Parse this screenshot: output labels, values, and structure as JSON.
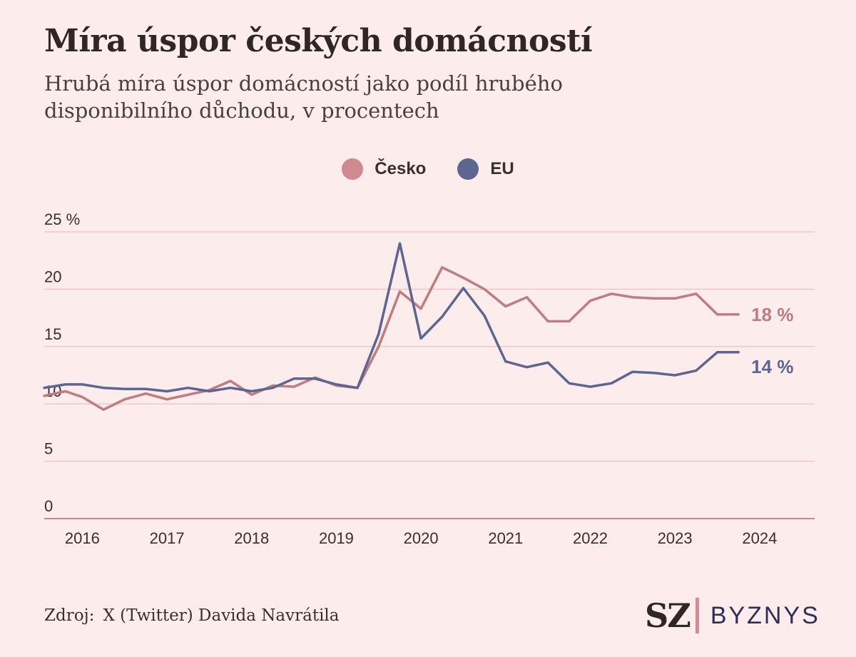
{
  "source": {
    "label": "Zdroj:",
    "text": "X (Twitter) Davida Navrátila"
  },
  "logo": {
    "mark": "SZ",
    "word": "BYZNYS"
  },
  "colors": {
    "cesko": "#c07c80",
    "eu": "#5d6690",
    "grid": "#f1c8ca",
    "axis": "#c98a8f"
  },
  "chart_data": {
    "type": "line",
    "title": "Míra úspor českých domácností",
    "subtitle": "Hrubá míra úspor domácností jako podíl hrubého disponibilního důchodu, v procentech",
    "xlabel": "",
    "ylabel": "",
    "ylim": [
      0,
      25
    ],
    "xlim": [
      2015.55,
      2024.65
    ],
    "y_ticks": [
      {
        "value": 0,
        "label": "0"
      },
      {
        "value": 5,
        "label": "5"
      },
      {
        "value": 10,
        "label": "10"
      },
      {
        "value": 15,
        "label": "15"
      },
      {
        "value": 20,
        "label": "20"
      },
      {
        "value": 25,
        "label": "25 %"
      }
    ],
    "x_ticks": [
      {
        "value": 2016,
        "label": "2016"
      },
      {
        "value": 2017,
        "label": "2017"
      },
      {
        "value": 2018,
        "label": "2018"
      },
      {
        "value": 2019,
        "label": "2019"
      },
      {
        "value": 2020,
        "label": "2020"
      },
      {
        "value": 2021,
        "label": "2021"
      },
      {
        "value": 2022,
        "label": "2022"
      },
      {
        "value": 2023,
        "label": "2023"
      },
      {
        "value": 2024,
        "label": "2024"
      }
    ],
    "grid": true,
    "legend_position": "top-center",
    "series": [
      {
        "name": "Česko",
        "color": "#c07c80",
        "end_label": "18 %",
        "x": [
          2015.55,
          2015.8,
          2016.0,
          2016.25,
          2016.5,
          2016.75,
          2017.0,
          2017.25,
          2017.5,
          2017.75,
          2018.0,
          2018.25,
          2018.5,
          2018.75,
          2019.0,
          2019.25,
          2019.5,
          2019.75,
          2020.0,
          2020.25,
          2020.5,
          2020.75,
          2021.0,
          2021.25,
          2021.5,
          2021.75,
          2022.0,
          2022.25,
          2022.5,
          2022.75,
          2023.0,
          2023.25,
          2023.5,
          2023.75
        ],
        "y": [
          10.7,
          11.1,
          10.6,
          9.5,
          10.4,
          10.9,
          10.4,
          10.8,
          11.2,
          12.0,
          10.8,
          11.6,
          11.5,
          12.3,
          11.6,
          11.4,
          15.0,
          19.8,
          18.3,
          21.9,
          21.0,
          20.0,
          18.5,
          19.3,
          17.2,
          17.2,
          19.0,
          19.6,
          19.3,
          19.2,
          19.2,
          19.6,
          17.8,
          17.8
        ]
      },
      {
        "name": "EU",
        "color": "#5d6690",
        "end_label": "14 %",
        "x": [
          2015.55,
          2015.8,
          2016.0,
          2016.25,
          2016.5,
          2016.75,
          2017.0,
          2017.25,
          2017.5,
          2017.75,
          2018.0,
          2018.25,
          2018.5,
          2018.75,
          2019.0,
          2019.25,
          2019.5,
          2019.75,
          2020.0,
          2020.25,
          2020.5,
          2020.75,
          2021.0,
          2021.25,
          2021.5,
          2021.75,
          2022.0,
          2022.25,
          2022.5,
          2022.75,
          2023.0,
          2023.25,
          2023.5,
          2023.75
        ],
        "y": [
          11.4,
          11.7,
          11.7,
          11.4,
          11.3,
          11.3,
          11.1,
          11.4,
          11.1,
          11.4,
          11.1,
          11.4,
          12.2,
          12.2,
          11.7,
          11.4,
          16.1,
          24.0,
          15.7,
          17.6,
          20.1,
          17.7,
          13.7,
          13.2,
          13.6,
          11.8,
          11.5,
          11.8,
          12.8,
          12.7,
          12.5,
          12.9,
          14.5,
          14.5
        ]
      }
    ]
  }
}
